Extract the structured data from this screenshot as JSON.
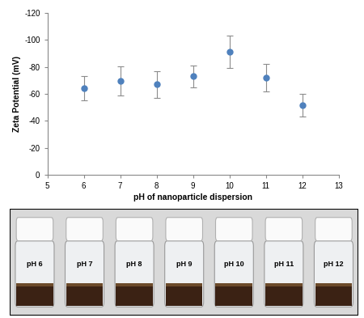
{
  "chart_data": {
    "type": "scatter",
    "x_label": "pH of nanoparticle dispersion",
    "y_label": "Zeta Potential (mV)",
    "x": [
      6,
      7,
      8,
      9,
      10,
      11,
      12
    ],
    "values": [
      -64,
      -69.5,
      -67,
      -73,
      -91,
      -72,
      -51.5
    ],
    "errors": [
      9,
      11,
      10,
      8,
      12,
      10,
      8.5
    ],
    "color": "#4f81bd",
    "marker": "o",
    "xlim": [
      5,
      13
    ],
    "xticks": [
      5,
      6,
      7,
      8,
      9,
      10,
      11,
      12,
      13
    ],
    "ylim": [
      0,
      -120
    ],
    "yticks": [
      -120,
      -100,
      -80,
      -60,
      -40,
      -20,
      0
    ],
    "grid": false
  },
  "photo": {
    "vial_labels": [
      "pH 6",
      "pH 7",
      "pH 8",
      "pH 9",
      "pH 10",
      "pH 11",
      "pH 12"
    ]
  }
}
